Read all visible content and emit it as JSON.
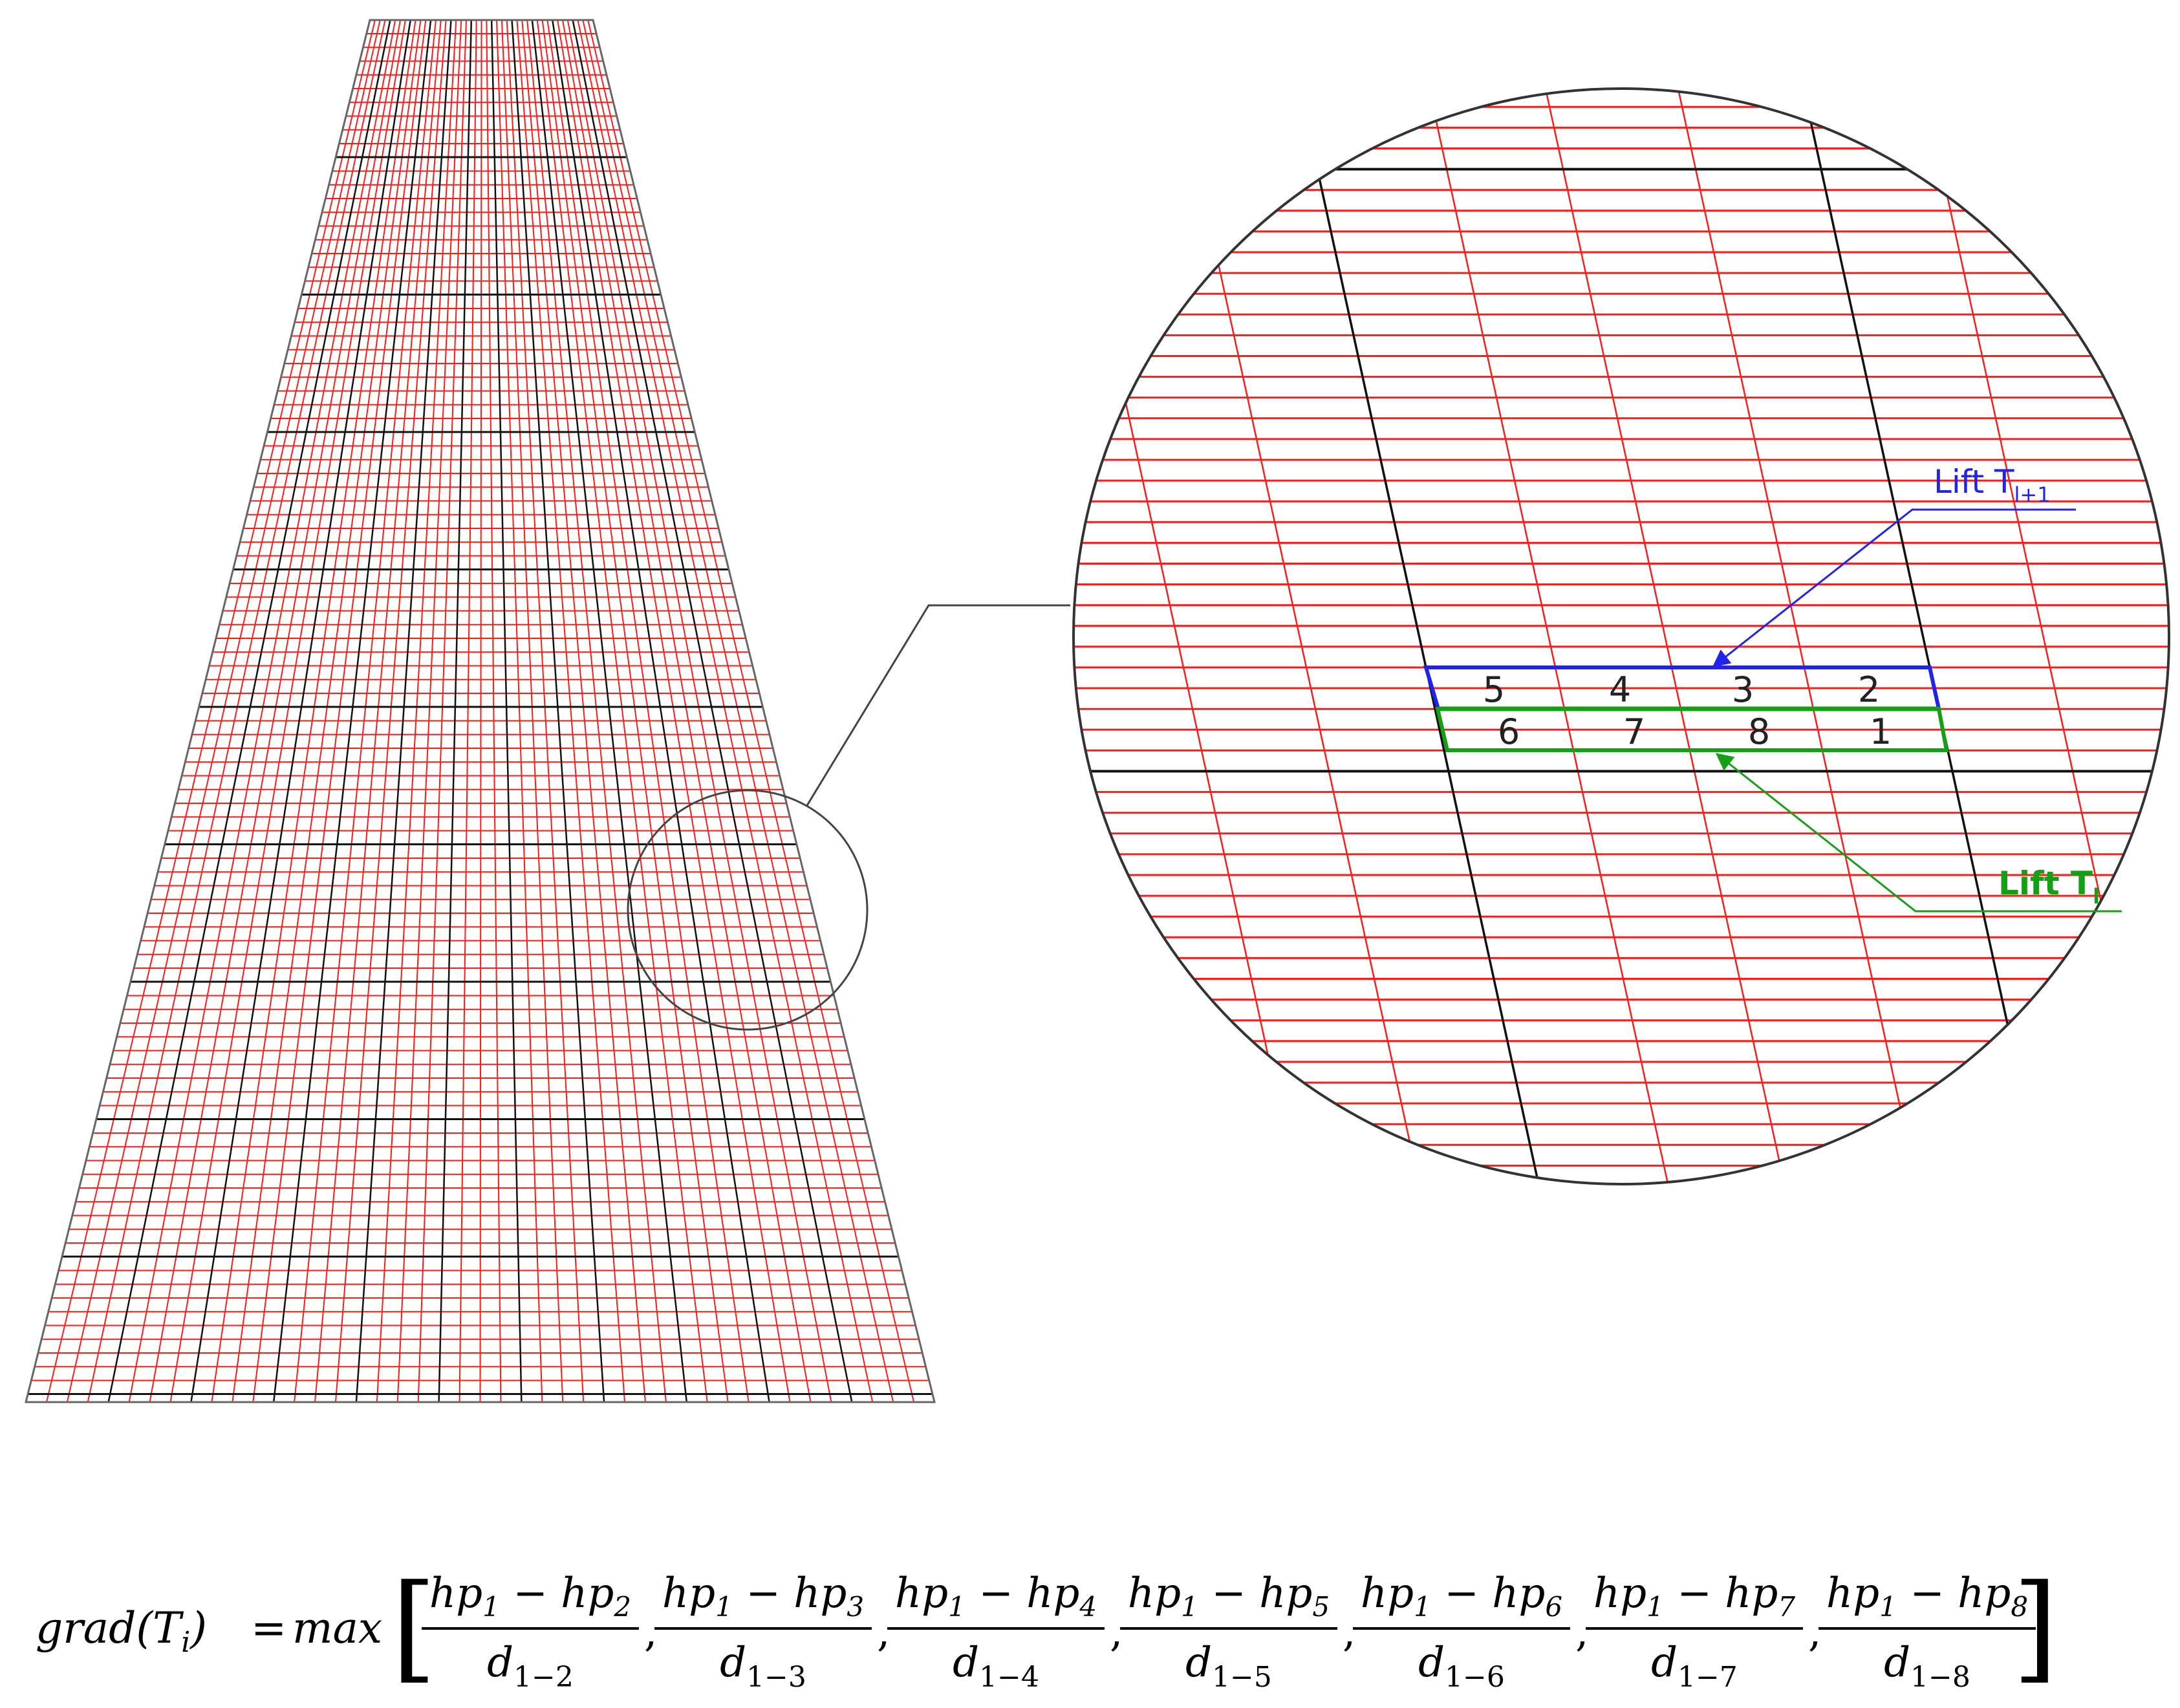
{
  "colors": {
    "mesh": "#ff1a1a",
    "lift_joint": "#111111",
    "outline": "#555555",
    "upper_lift": "#2222ee",
    "lower_lift": "#14a014"
  },
  "labels": {
    "upper_lift_main": "Lift T",
    "upper_lift_sub": "l+1",
    "lower_lift_main": "Lift T",
    "lower_lift_sub": "l"
  },
  "upper_cells": [
    "5",
    "4",
    "3",
    "2"
  ],
  "lower_cells": [
    "6",
    "7",
    "8",
    "1"
  ],
  "formula": {
    "lhs_fn": "grad",
    "lhs_open": "(",
    "lhs_var": "T",
    "lhs_sub": "i",
    "lhs_close": ")",
    "equals": "=",
    "op": "max",
    "bracket_open": "[",
    "bracket_close": "]",
    "separator": ",",
    "fractions": [
      {
        "num_a": "hp",
        "num_a_sub": "1",
        "minus": "−",
        "num_b": "hp",
        "num_b_sub": "2",
        "den": "d",
        "den_sub": "1−2"
      },
      {
        "num_a": "hp",
        "num_a_sub": "1",
        "minus": "−",
        "num_b": "hp",
        "num_b_sub": "3",
        "den": "d",
        "den_sub": "1−3"
      },
      {
        "num_a": "hp",
        "num_a_sub": "1",
        "minus": "−",
        "num_b": "hp",
        "num_b_sub": "4",
        "den": "d",
        "den_sub": "1−4"
      },
      {
        "num_a": "hp",
        "num_a_sub": "1",
        "minus": "−",
        "num_b": "hp",
        "num_b_sub": "5",
        "den": "d",
        "den_sub": "1−5"
      },
      {
        "num_a": "hp",
        "num_a_sub": "1",
        "minus": "−",
        "num_b": "hp",
        "num_b_sub": "6",
        "den": "d",
        "den_sub": "1−6"
      },
      {
        "num_a": "hp",
        "num_a_sub": "1",
        "minus": "−",
        "num_b": "hp",
        "num_b_sub": "7",
        "den": "d",
        "den_sub": "1−7"
      },
      {
        "num_a": "hp",
        "num_a_sub": "1",
        "minus": "−",
        "num_b": "hp",
        "num_b_sub": "8",
        "den": "d",
        "den_sub": "1−8"
      }
    ]
  }
}
